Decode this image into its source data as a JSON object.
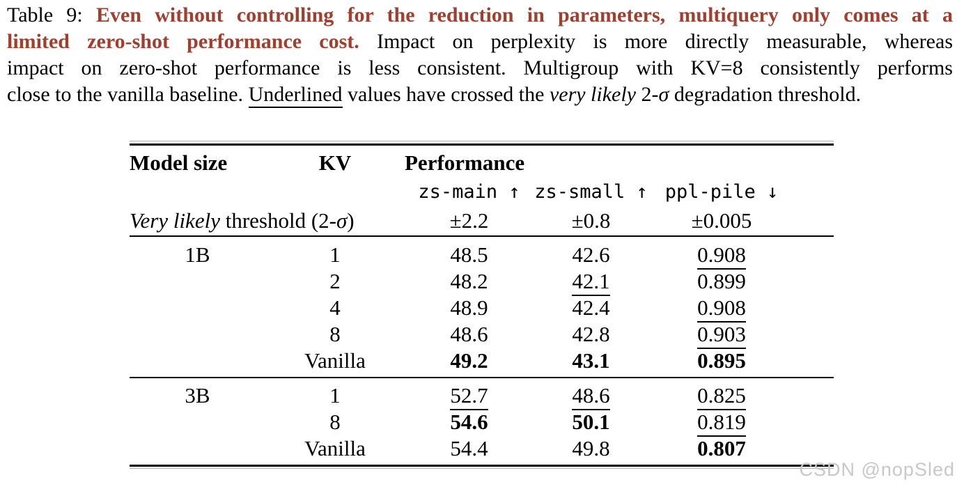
{
  "caption": {
    "accent_color": "#A23E2D",
    "lines": [
      [
        {
          "t": "Table 9: ",
          "s": "plain"
        },
        {
          "t": "Even without controlling for the reduction in parameters, multiquery only comes at a",
          "s": "boldred"
        }
      ],
      [
        {
          "t": "limited zero-shot performance cost.",
          "s": "boldred"
        },
        {
          "t": " Impact on perplexity is more directly measurable, whereas",
          "s": "plain"
        }
      ],
      [
        {
          "t": "impact on zero-shot performance is less consistent. Multigroup with KV=8 consistently performs",
          "s": "plain"
        }
      ],
      [
        {
          "t": "close to the vanilla baseline. ",
          "s": "plain"
        },
        {
          "t": "Underlined",
          "s": "underline"
        },
        {
          "t": " values have crossed the ",
          "s": "plain"
        },
        {
          "t": "very likely",
          "s": "italic"
        },
        {
          "t": " 2-",
          "s": "plain"
        },
        {
          "t": "σ",
          "s": "italic"
        },
        {
          "t": " degradation threshold.",
          "s": "plain"
        }
      ]
    ]
  },
  "table": {
    "headers": {
      "model_size": "Model size",
      "kv": "KV",
      "performance": "Performance",
      "metrics": [
        "zs-main ↑",
        "zs-small ↑",
        "ppl-pile ↓"
      ]
    },
    "threshold": {
      "label_italic": "Very likely",
      "label_mid": " threshold (2-",
      "label_sigma": "σ",
      "label_end": ")",
      "values": [
        "±2.2",
        "±0.8",
        "±0.005"
      ]
    },
    "column_names": [
      "zs-main",
      "zs-small",
      "ppl-pile"
    ],
    "groups": [
      {
        "model_size": "1B",
        "rows": [
          {
            "kv": "1",
            "cells": [
              {
                "v": "48.5"
              },
              {
                "v": "42.6"
              },
              {
                "v": "0.908",
                "u": true
              }
            ]
          },
          {
            "kv": "2",
            "cells": [
              {
                "v": "48.2"
              },
              {
                "v": "42.1",
                "u": true
              },
              {
                "v": "0.899"
              }
            ]
          },
          {
            "kv": "4",
            "cells": [
              {
                "v": "48.9"
              },
              {
                "v": "42.4"
              },
              {
                "v": "0.908",
                "u": true
              }
            ]
          },
          {
            "kv": "8",
            "cells": [
              {
                "v": "48.6"
              },
              {
                "v": "42.8"
              },
              {
                "v": "0.903",
                "u": true
              }
            ]
          },
          {
            "kv": "Vanilla",
            "cells": [
              {
                "v": "49.2",
                "b": true
              },
              {
                "v": "43.1",
                "b": true
              },
              {
                "v": "0.895",
                "b": true
              }
            ]
          }
        ]
      },
      {
        "model_size": "3B",
        "rows": [
          {
            "kv": "1",
            "cells": [
              {
                "v": "52.7",
                "u": true
              },
              {
                "v": "48.6",
                "u": true
              },
              {
                "v": "0.825",
                "u": true
              }
            ]
          },
          {
            "kv": "8",
            "cells": [
              {
                "v": "54.6",
                "b": true
              },
              {
                "v": "50.1",
                "b": true
              },
              {
                "v": "0.819",
                "u": true
              }
            ]
          },
          {
            "kv": "Vanilla",
            "cells": [
              {
                "v": "54.4"
              },
              {
                "v": "49.8"
              },
              {
                "v": "0.807",
                "b": true
              }
            ]
          }
        ]
      }
    ]
  },
  "watermark": {
    "text": "CSDN @nopSled",
    "color": "#cac7c7"
  }
}
